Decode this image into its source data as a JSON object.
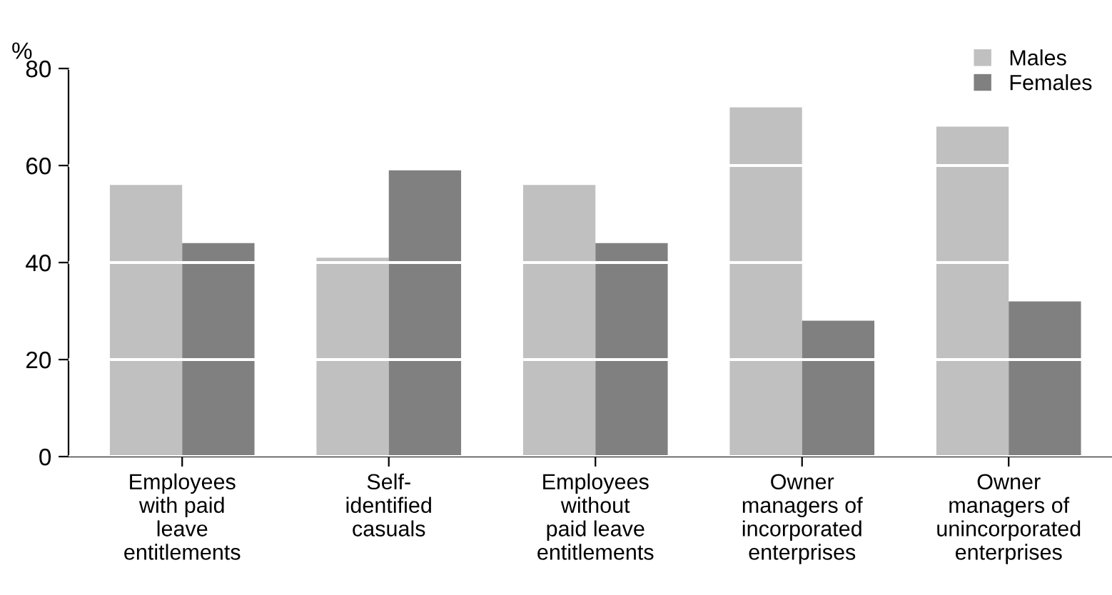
{
  "chart_data": {
    "type": "bar",
    "ylabel": "%",
    "categories": [
      "Employees\nwith paid\nleave\nentitlements",
      "Self-\nidentified\ncasuals",
      "Employees\nwithout\npaid leave\nentitlements",
      "Owner\nmanagers of\nincorporated\nenterprises",
      "Owner\nmanagers of\nunincorporated\nenterprises"
    ],
    "series": [
      {
        "name": "Males",
        "color": "#c0c0c0",
        "values": [
          56,
          41,
          56,
          72,
          68
        ]
      },
      {
        "name": "Females",
        "color": "#808080",
        "values": [
          44,
          59,
          44,
          28,
          32
        ]
      }
    ],
    "ylim": [
      0,
      80
    ],
    "yticks": [
      0,
      20,
      40,
      60,
      80
    ],
    "grid": "y",
    "legend": "top right"
  }
}
